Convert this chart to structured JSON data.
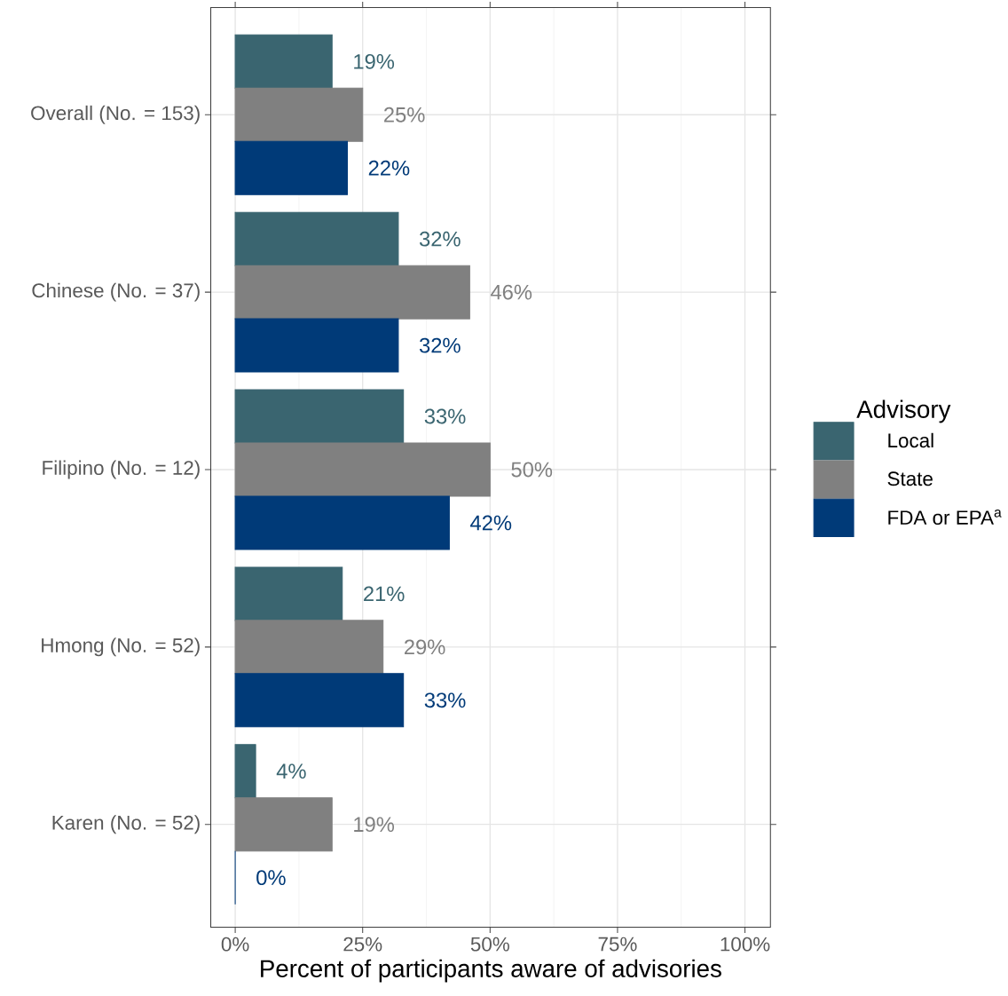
{
  "chart_data": {
    "type": "bar",
    "orientation": "horizontal",
    "categories": [
      "Overall (No. = 153)",
      "Chinese (No. = 37)",
      "Filipino (No. = 12)",
      "Hmong (No. = 52)",
      "Karen (No. = 52)"
    ],
    "series": [
      {
        "name": "Local",
        "color": "#3a6570",
        "values": [
          19,
          32,
          33,
          21,
          4
        ],
        "value_labels": [
          "19%",
          "32%",
          "33%",
          "21%",
          "4%"
        ]
      },
      {
        "name": "State",
        "color": "#808080",
        "values": [
          25,
          46,
          50,
          29,
          19
        ],
        "value_labels": [
          "25%",
          "46%",
          "50%",
          "29%",
          "19%"
        ]
      },
      {
        "name": "FDA or EPA$^{a}$",
        "color": "#003a78",
        "values": [
          22,
          32,
          42,
          33,
          0
        ],
        "value_labels": [
          "22%",
          "32%",
          "42%",
          "33%",
          "0%"
        ]
      }
    ],
    "xlabel": "Percent of participants aware of advisories",
    "legend_title": "Advisory",
    "xlim": [
      -4.8,
      105
    ],
    "xticks": [
      {
        "value": 0,
        "label": "0%"
      },
      {
        "value": 25,
        "label": "25%"
      },
      {
        "value": 50,
        "label": "50%"
      },
      {
        "value": 75,
        "label": "75%"
      },
      {
        "value": 100,
        "label": "100%"
      }
    ],
    "grid": true,
    "legend": "right"
  }
}
